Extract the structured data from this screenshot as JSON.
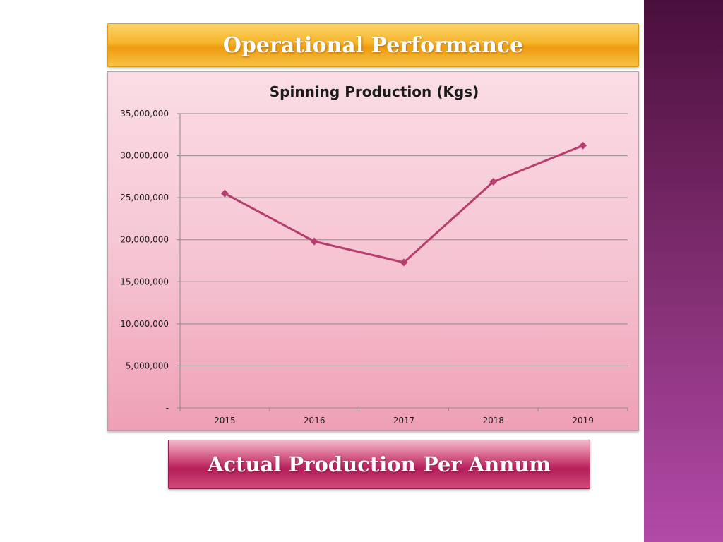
{
  "header": {
    "title": "Operational Performance"
  },
  "footer": {
    "caption": "Actual Production Per Annum"
  },
  "colors": {
    "line": "#b83c6e",
    "grid": "#8c8c8c",
    "side_bar": "#7a2a6a",
    "header_banner": "#f7b52a",
    "footer_banner": "#b51e5a"
  },
  "chart_data": {
    "type": "line",
    "title": "Spinning Production (Kgs)",
    "xlabel": "",
    "ylabel": "",
    "categories": [
      "2015",
      "2016",
      "2017",
      "2018",
      "2019"
    ],
    "series": [
      {
        "values": [
          25500000,
          19800000,
          17300000,
          26900000,
          31200000
        ]
      }
    ],
    "ylim": [
      0,
      35000000
    ],
    "yticks": [
      0,
      5000000,
      10000000,
      15000000,
      20000000,
      25000000,
      30000000,
      35000000
    ],
    "ytick_labels": [
      "-",
      "5,000,000",
      "10,000,000",
      "15,000,000",
      "20,000,000",
      "25,000,000",
      "30,000,000",
      "35,000,000"
    ],
    "grid": true,
    "legend": "none",
    "marker": "diamond"
  }
}
